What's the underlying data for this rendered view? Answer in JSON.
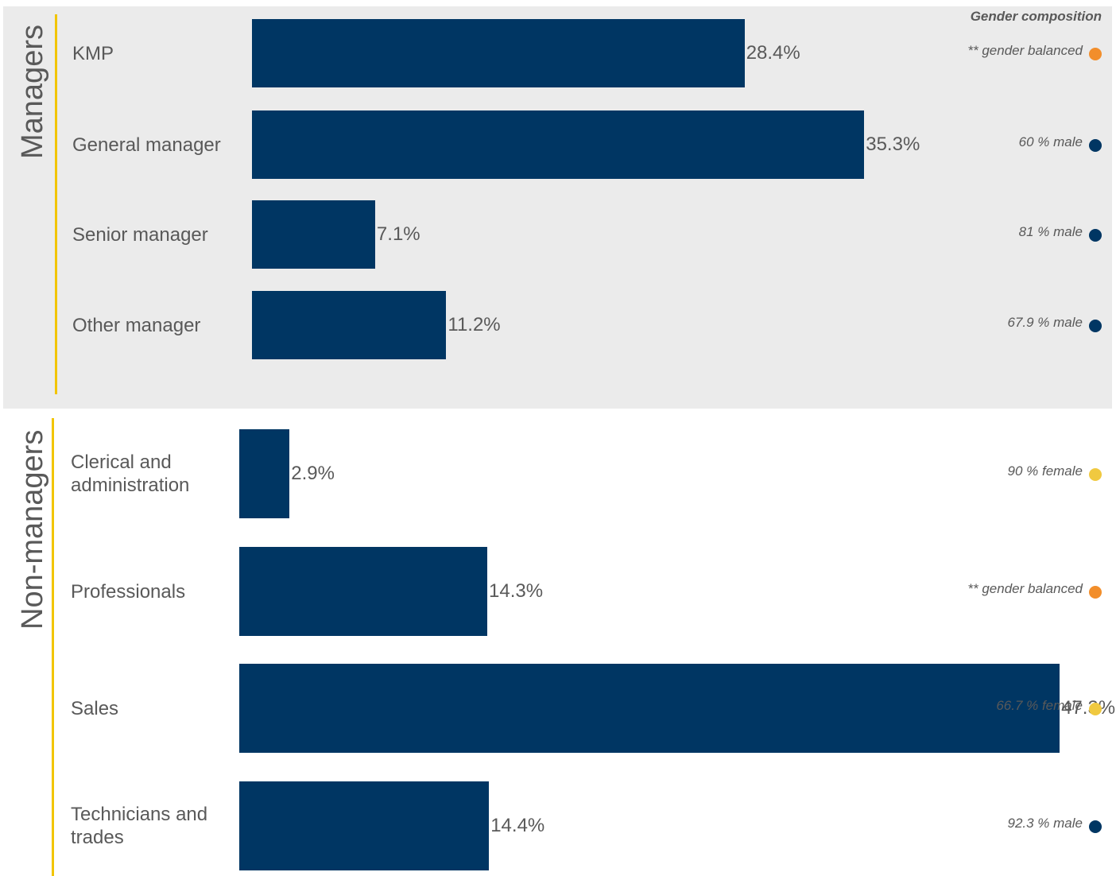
{
  "chart_data": {
    "type": "bar",
    "orientation": "horizontal",
    "header": "Gender composition",
    "colors": {
      "bar": "#003663",
      "group_rule": "#f2c500",
      "male": "#003663",
      "female": "#f0c940",
      "balanced": "#f28e2b"
    },
    "groups": [
      {
        "name": "Managers",
        "background": "#ebebeb",
        "categories": [
          {
            "label": "KMP",
            "value": 28.4,
            "value_label": "28.4%",
            "composition": "** gender balanced",
            "composition_type": "balanced"
          },
          {
            "label": "General manager",
            "value": 35.3,
            "value_label": "35.3%",
            "composition": "60 % male",
            "composition_type": "male"
          },
          {
            "label": "Senior manager",
            "value": 7.1,
            "value_label": "7.1%",
            "composition": "81 % male",
            "composition_type": "male"
          },
          {
            "label": "Other manager",
            "value": 11.2,
            "value_label": "11.2%",
            "composition": "67.9 % male",
            "composition_type": "male"
          }
        ]
      },
      {
        "name": "Non-managers",
        "background": "#ffffff",
        "categories": [
          {
            "label": "Clerical and administration",
            "value": 2.9,
            "value_label": "2.9%",
            "composition": "90 % female",
            "composition_type": "female"
          },
          {
            "label": "Professionals",
            "value": 14.3,
            "value_label": "14.3%",
            "composition": "** gender balanced",
            "composition_type": "balanced"
          },
          {
            "label": "Sales",
            "value": 47.3,
            "value_label": "47.3%",
            "composition": "66.7 % female",
            "composition_type": "female"
          },
          {
            "label": "Technicians and trades",
            "value": 14.4,
            "value_label": "14.4%",
            "composition": "92.3 % male",
            "composition_type": "male"
          }
        ]
      }
    ]
  }
}
